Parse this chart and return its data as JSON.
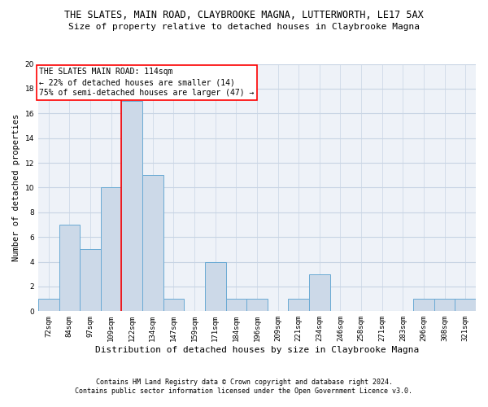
{
  "title": "THE SLATES, MAIN ROAD, CLAYBROOKE MAGNA, LUTTERWORTH, LE17 5AX",
  "subtitle": "Size of property relative to detached houses in Claybrooke Magna",
  "xlabel": "Distribution of detached houses by size in Claybrooke Magna",
  "ylabel": "Number of detached properties",
  "categories": [
    "72sqm",
    "84sqm",
    "97sqm",
    "109sqm",
    "122sqm",
    "134sqm",
    "147sqm",
    "159sqm",
    "171sqm",
    "184sqm",
    "196sqm",
    "209sqm",
    "221sqm",
    "234sqm",
    "246sqm",
    "258sqm",
    "271sqm",
    "283sqm",
    "296sqm",
    "308sqm",
    "321sqm"
  ],
  "values": [
    1,
    7,
    5,
    10,
    17,
    11,
    1,
    0,
    4,
    1,
    1,
    0,
    1,
    3,
    0,
    0,
    0,
    0,
    1,
    1,
    1
  ],
  "bar_color": "#ccd9e8",
  "bar_edge_color": "#6aaad4",
  "bar_linewidth": 0.7,
  "grid_color": "#c8d4e4",
  "background_color": "#eef2f8",
  "vline_x": 3.5,
  "vline_color": "red",
  "vline_linewidth": 1.2,
  "annotation_line1": "THE SLATES MAIN ROAD: 114sqm",
  "annotation_line2": "← 22% of detached houses are smaller (14)",
  "annotation_line3": "75% of semi-detached houses are larger (47) →",
  "ylim": [
    0,
    20
  ],
  "yticks": [
    0,
    2,
    4,
    6,
    8,
    10,
    12,
    14,
    16,
    18,
    20
  ],
  "footer_line1": "Contains HM Land Registry data © Crown copyright and database right 2024.",
  "footer_line2": "Contains public sector information licensed under the Open Government Licence v3.0.",
  "title_fontsize": 8.5,
  "subtitle_fontsize": 8.0,
  "xlabel_fontsize": 8.0,
  "ylabel_fontsize": 7.5,
  "tick_fontsize": 6.5,
  "annotation_fontsize": 7.0,
  "footer_fontsize": 6.0
}
